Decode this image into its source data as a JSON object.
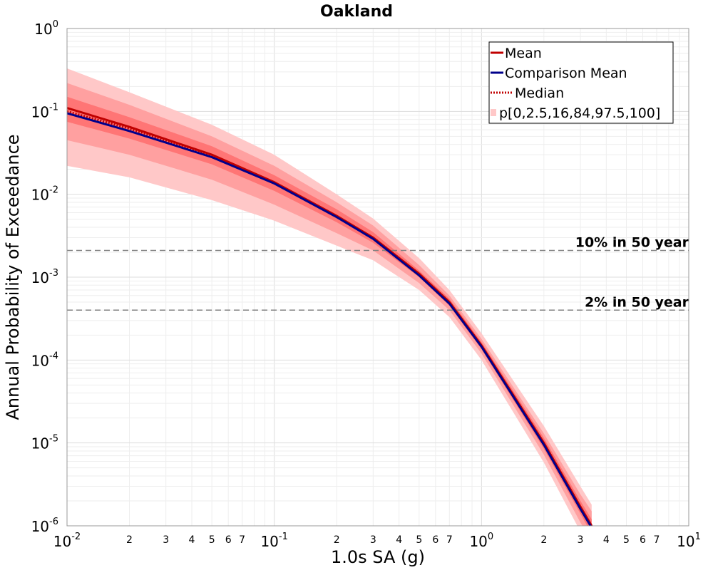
{
  "chart_data": {
    "type": "line",
    "title": "Oakland",
    "xlabel": "1.0s SA (g)",
    "ylabel": "Annual Probability of Exceedance",
    "x_scale": "log",
    "y_scale": "log",
    "xlim": [
      0.01,
      10
    ],
    "ylim": [
      1e-06,
      1
    ],
    "grid": true,
    "legend_position": "top-right",
    "x_major_ticks": [
      {
        "base": "10",
        "exp": "-2"
      },
      {
        "base": "10",
        "exp": "-1"
      },
      {
        "base": "10",
        "exp": "0"
      },
      {
        "base": "10",
        "exp": "1"
      }
    ],
    "x_minor_tick_labels": [
      "2",
      "3",
      "4",
      "5",
      "6",
      "7"
    ],
    "y_major_ticks": [
      {
        "base": "10",
        "exp": "-6"
      },
      {
        "base": "10",
        "exp": "-5"
      },
      {
        "base": "10",
        "exp": "-4"
      },
      {
        "base": "10",
        "exp": "-3"
      },
      {
        "base": "10",
        "exp": "-2"
      },
      {
        "base": "10",
        "exp": "-1"
      },
      {
        "base": "10",
        "exp": "0"
      }
    ],
    "x": [
      0.01,
      0.02,
      0.05,
      0.1,
      0.2,
      0.3,
      0.5,
      0.7,
      1.0,
      2.0,
      3.0,
      3.4
    ],
    "series": [
      {
        "name": "Mean",
        "color": "#c00000",
        "style": "solid",
        "values": [
          0.11,
          0.065,
          0.03,
          0.014,
          0.0055,
          0.003,
          0.0011,
          0.0005,
          0.00015,
          1e-05,
          1.7e-06,
          1e-06
        ]
      },
      {
        "name": "Comparison Mean",
        "color": "#00008b",
        "style": "solid",
        "values": [
          0.095,
          0.058,
          0.028,
          0.0135,
          0.0053,
          0.0029,
          0.00105,
          0.00048,
          0.000145,
          9.5e-06,
          1.6e-06,
          9.5e-07
        ]
      },
      {
        "name": "Median",
        "color": "#c00000",
        "style": "dotted",
        "values": [
          0.1,
          0.062,
          0.0295,
          0.0138,
          0.0054,
          0.003,
          0.0011,
          0.0005,
          0.00015,
          1e-05,
          1.7e-06,
          1e-06
        ]
      }
    ],
    "bands_legend": "p[0,2.5,16,84,97.5,100]",
    "bands": [
      {
        "name": "p0-p100",
        "color": "#ffc8c8",
        "lower": [
          0.022,
          0.016,
          0.0085,
          0.0048,
          0.0024,
          0.0016,
          0.0007,
          0.00033,
          0.0001,
          5.8e-06,
          8.5e-07,
          5e-07
        ],
        "upper": [
          0.33,
          0.17,
          0.069,
          0.03,
          0.01,
          0.0051,
          0.0017,
          0.0007,
          0.00021,
          1.6e-05,
          3e-06,
          1.8e-06
        ]
      },
      {
        "name": "p2.5-p97.5",
        "color": "#ffa0a0",
        "lower": [
          0.045,
          0.03,
          0.015,
          0.0075,
          0.0034,
          0.0021,
          0.00085,
          0.0004,
          0.00012,
          7.2e-06,
          1.1e-06,
          6.5e-07
        ],
        "upper": [
          0.22,
          0.12,
          0.05,
          0.022,
          0.008,
          0.0042,
          0.0014,
          0.0006,
          0.00018,
          1.3e-05,
          2.4e-06,
          1.5e-06
        ]
      },
      {
        "name": "p16-p84",
        "color": "#ff7575",
        "lower": [
          0.075,
          0.047,
          0.023,
          0.011,
          0.0046,
          0.0026,
          0.001,
          0.00045,
          0.000135,
          8.5e-06,
          1.4e-06,
          8e-07
        ],
        "upper": [
          0.15,
          0.085,
          0.038,
          0.017,
          0.0066,
          0.0035,
          0.0012,
          0.00055,
          0.000165,
          1.15e-05,
          2e-06,
          1.2e-06
        ]
      }
    ],
    "reference_lines": [
      {
        "label": "10% in 50 year",
        "y": 0.0021
      },
      {
        "label": "2% in 50 year",
        "y": 0.0004
      }
    ]
  }
}
